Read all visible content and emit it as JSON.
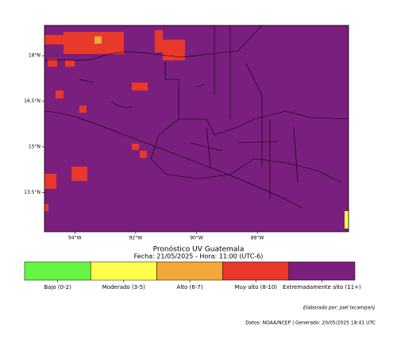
{
  "map": {
    "lon_range": [
      -95,
      -85
    ],
    "lat_range": [
      12.2,
      19
    ],
    "lon_ticks": [
      {
        "value": -94,
        "label": "94°W"
      },
      {
        "value": -92,
        "label": "92°W"
      },
      {
        "value": -90,
        "label": "90°W"
      },
      {
        "value": -88,
        "label": "88°W"
      }
    ],
    "lat_ticks": [
      {
        "value": 18,
        "label": "18°N"
      },
      {
        "value": 16.5,
        "label": "16.5°N"
      },
      {
        "value": 15,
        "label": "15°N"
      },
      {
        "value": 13.5,
        "label": "13.5°N"
      }
    ]
  },
  "title": "Pronóstico UV Guatemala",
  "subtitle": "Fecha: 21/05/2025 - Hora: 11:00 (UTC-6)",
  "legend": {
    "items": [
      {
        "label": "Bajo (0-2)",
        "color": "#66f542"
      },
      {
        "label": "Moderado (3-5)",
        "color": "#ffff4d"
      },
      {
        "label": "Alto (6-7)",
        "color": "#f2a93b"
      },
      {
        "label": "Muy alto (8-10)",
        "color": "#e8392a"
      },
      {
        "label": "Extremadamente alto (11+)",
        "color": "#7b1f7e"
      }
    ]
  },
  "credit": "Elaborado por: Joel Ixcamparij",
  "source": "Datos: NOAA/NCEP | Generado: 20/05/2025 18:41 UTC"
}
